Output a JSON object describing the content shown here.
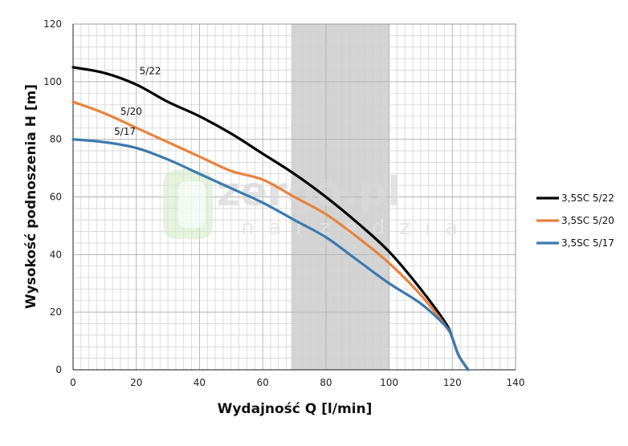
{
  "chart_data": {
    "type": "line",
    "title": "",
    "xlabel": "Wydajność Q [l/min]",
    "ylabel": "Wysokość podnoszenia H [m]",
    "xlim": [
      0,
      140
    ],
    "ylim": [
      0,
      120
    ],
    "x_ticks": [
      "0",
      "20",
      "40",
      "60",
      "80",
      "100",
      "120",
      "140"
    ],
    "y_ticks": [
      "0",
      "20",
      "40",
      "60",
      "80",
      "100",
      "120"
    ],
    "grid": true,
    "legend_position": "right",
    "highlight_band": {
      "from": 69,
      "to": 100,
      "color": "#d4d4d4"
    },
    "watermark": {
      "main": "zerga.pl",
      "sub": "narzedzia"
    },
    "series": [
      {
        "name": "3,5SC 5/22",
        "label": "5/22",
        "color": "#000000",
        "x": [
          0,
          10,
          20,
          30,
          40,
          50,
          60,
          70,
          80,
          90,
          100,
          110,
          118,
          120,
          122,
          125
        ],
        "y": [
          105,
          103,
          99,
          93,
          88,
          82,
          75,
          68,
          60,
          51,
          41,
          28,
          16,
          11,
          5,
          0
        ]
      },
      {
        "name": "3,5SC 5/20",
        "label": "5/20",
        "color": "#e8823c",
        "x": [
          0,
          10,
          20,
          30,
          40,
          50,
          60,
          70,
          80,
          90,
          100,
          110,
          118,
          120,
          122,
          125
        ],
        "y": [
          93,
          89,
          84,
          79,
          74,
          69,
          66,
          60,
          54,
          46,
          37,
          26,
          15,
          11,
          5,
          0
        ]
      },
      {
        "name": "3,5SC 5/17",
        "label": "5/17",
        "color": "#3c7aaf",
        "x": [
          0,
          10,
          20,
          30,
          40,
          50,
          60,
          70,
          80,
          90,
          100,
          110,
          118,
          120,
          122,
          125
        ],
        "y": [
          80,
          79,
          77,
          73,
          68,
          63,
          58,
          52,
          46,
          38,
          30,
          23,
          15,
          11,
          5,
          0
        ]
      }
    ]
  }
}
